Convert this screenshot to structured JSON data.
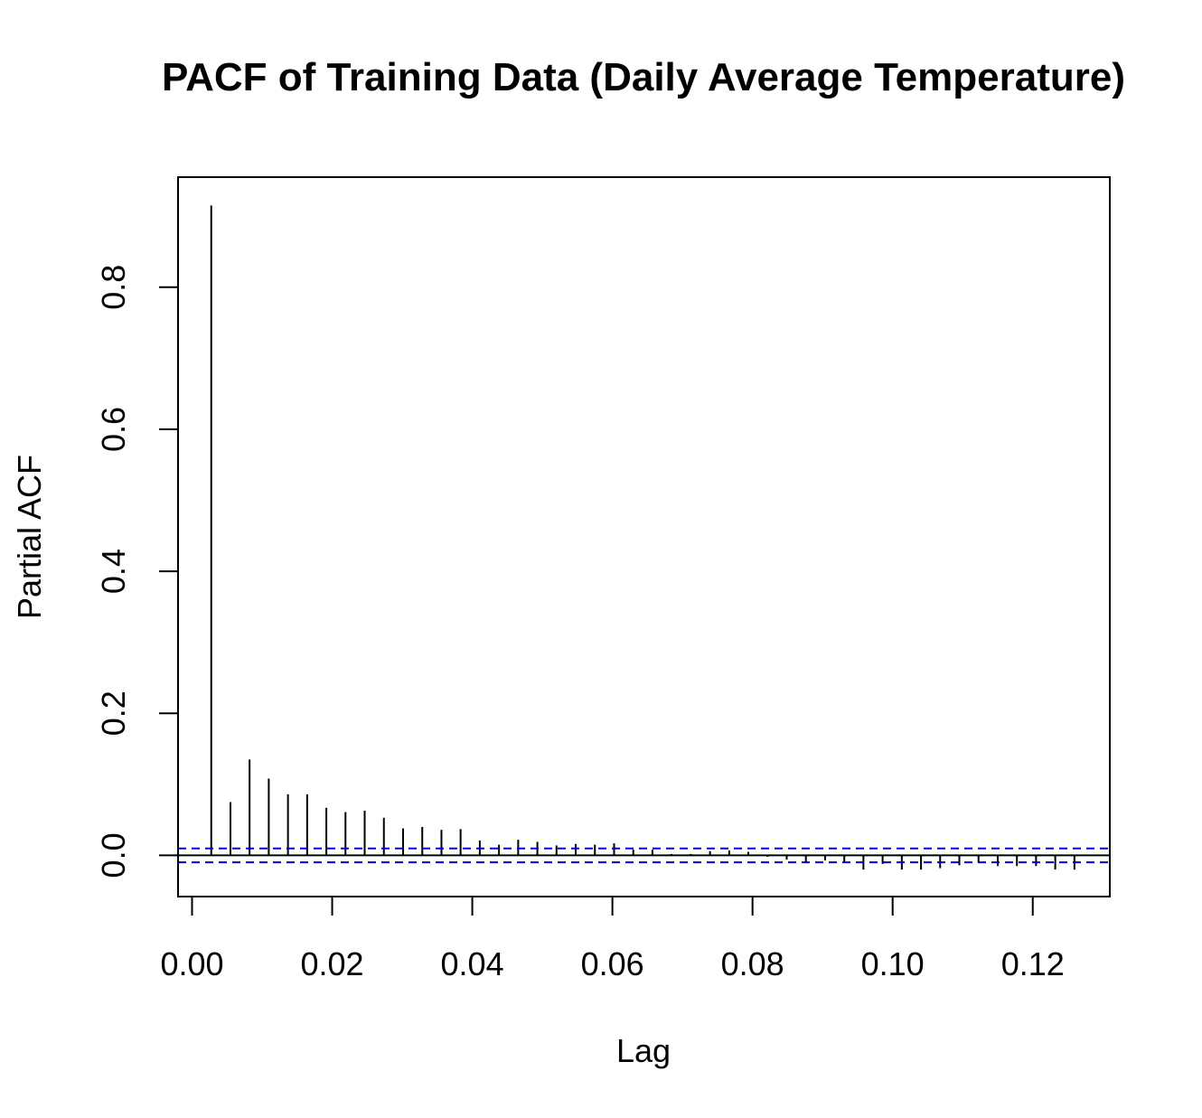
{
  "chart_data": {
    "type": "bar",
    "title": "PACF of Training Data (Daily Average Temperature)",
    "xlabel": "Lag",
    "ylabel": "Partial ACF",
    "xlim": [
      -0.002,
      0.131
    ],
    "ylim": [
      -0.058,
      0.955
    ],
    "x_ticks": [
      "0.00",
      "0.02",
      "0.04",
      "0.06",
      "0.08",
      "0.10",
      "0.12"
    ],
    "y_ticks": [
      "0.0",
      "0.2",
      "0.4",
      "0.6",
      "0.8"
    ],
    "confidence_band": 0.0098,
    "zero_line": true,
    "grid": false,
    "colors": {
      "bars": "#000000",
      "band": "#0000CC",
      "frame": "#000000"
    },
    "series": [
      {
        "lag": [
          0.00274,
          0.00548,
          0.00821,
          0.01095,
          0.01369,
          0.01643,
          0.01917,
          0.0219,
          0.02464,
          0.02738,
          0.03012,
          0.03286,
          0.0356,
          0.03833,
          0.04107,
          0.04381,
          0.04655,
          0.04929,
          0.05202,
          0.05476,
          0.0575,
          0.06024,
          0.06298,
          0.06571,
          0.06845,
          0.07119,
          0.07393,
          0.07667,
          0.0794,
          0.08214,
          0.08488,
          0.08762,
          0.09036,
          0.0931,
          0.09583,
          0.09857,
          0.10131,
          0.10405,
          0.10678,
          0.10952,
          0.11226,
          0.115,
          0.11774,
          0.12047,
          0.12321,
          0.12595
        ],
        "values": [
          0.915,
          0.075,
          0.135,
          0.108,
          0.086,
          0.086,
          0.067,
          0.061,
          0.063,
          0.053,
          0.038,
          0.04,
          0.036,
          0.037,
          0.021,
          0.015,
          0.022,
          0.019,
          0.014,
          0.016,
          0.015,
          0.017,
          0.008,
          0.008,
          0.002,
          0.002,
          0.006,
          0.007,
          0.005,
          -0.002,
          -0.006,
          -0.01,
          -0.007,
          -0.01,
          -0.02,
          -0.012,
          -0.02,
          -0.02,
          -0.018,
          -0.014,
          -0.01,
          -0.015,
          -0.015,
          -0.015,
          -0.02,
          -0.02
        ]
      }
    ]
  }
}
